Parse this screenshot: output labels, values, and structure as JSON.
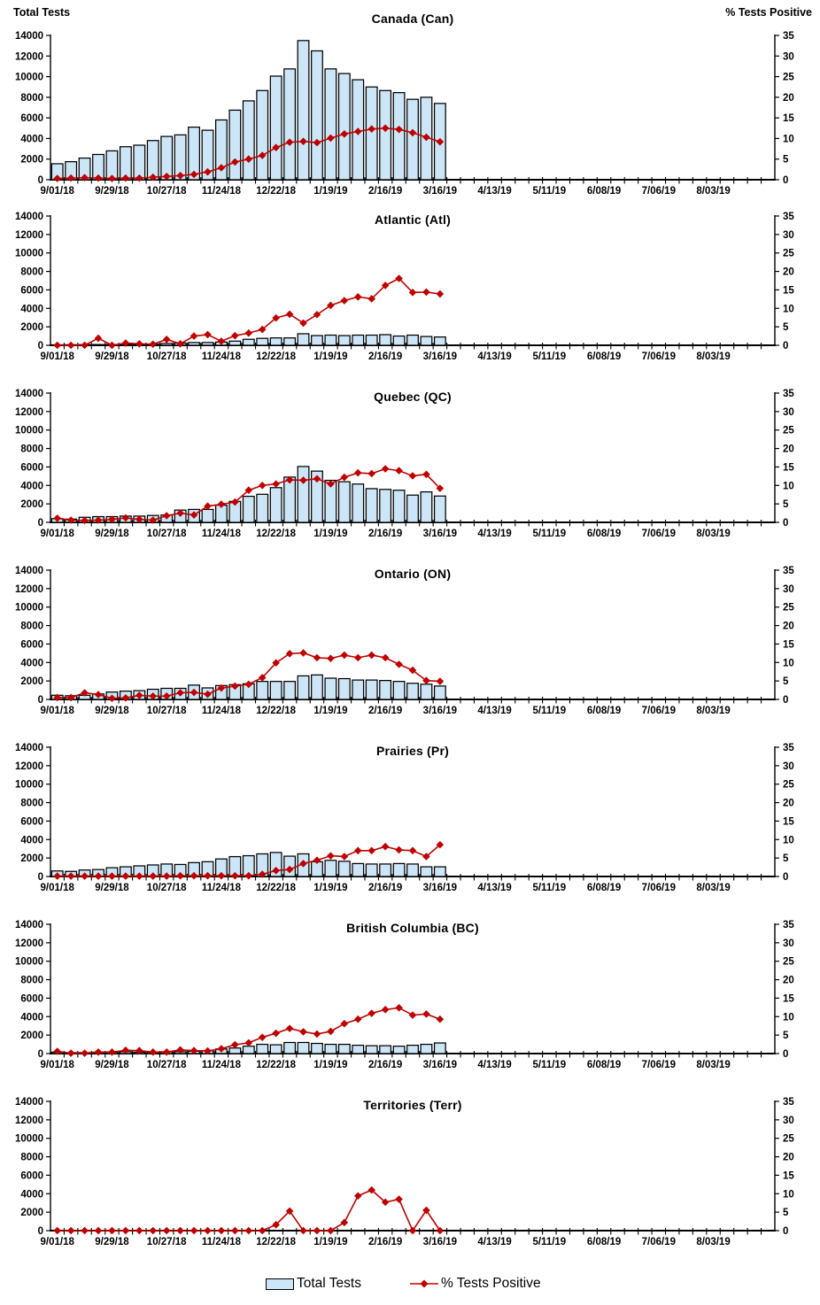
{
  "page": {
    "background": "#ffffff"
  },
  "colors": {
    "bar_fill": "#cce6f8",
    "bar_stroke": "#000000",
    "line_color": "#c00000",
    "marker_color": "#c00000",
    "axis_color": "#000000",
    "text_color": "#000000"
  },
  "legend": {
    "total_tests_label": "Total Tests",
    "pct_positive_label": "% Tests Positive"
  },
  "chart_data": {
    "type": "combo-bar-line-small-multiples",
    "description_visible": "Seven stacked weekly panels, light-blue bars = Total Tests (left axis), red diamond line = % Tests Positive (right axis)",
    "left_axis": {
      "title": "Total Tests",
      "min": 0,
      "max": 14000,
      "ticks": [
        0,
        2000,
        4000,
        6000,
        8000,
        10000,
        12000,
        14000
      ]
    },
    "right_axis": {
      "title": "% Tests Positive",
      "min": 0,
      "max": 35,
      "ticks": [
        0,
        5,
        10,
        15,
        20,
        25,
        30,
        35
      ]
    },
    "x_axis": {
      "n_slots": 53,
      "tick_every": "week",
      "label_slots": [
        0,
        4,
        8,
        12,
        16,
        20,
        24,
        28,
        32,
        36,
        40,
        44,
        48
      ],
      "labels": [
        "9/01/18",
        "9/29/18",
        "10/27/18",
        "11/24/18",
        "12/22/18",
        "1/19/19",
        "2/16/19",
        "3/16/19",
        "4/13/19",
        "5/11/19",
        "6/08/19",
        "7/06/19",
        "8/03/19"
      ]
    },
    "categories": [
      "9/01/18",
      "9/08/18",
      "9/15/18",
      "9/22/18",
      "9/29/18",
      "10/06/18",
      "10/13/18",
      "10/20/18",
      "10/27/18",
      "11/03/18",
      "11/10/18",
      "11/17/18",
      "11/24/18",
      "12/01/18",
      "12/08/18",
      "12/15/18",
      "12/22/18",
      "12/29/18",
      "1/05/19",
      "1/12/19",
      "1/19/19",
      "1/26/19",
      "2/02/19",
      "2/09/19",
      "2/16/19",
      "2/23/19",
      "3/02/19",
      "3/09/19",
      "3/16/19"
    ],
    "panels": [
      {
        "title": "Canada (Can)",
        "total_tests": [
          1550,
          1750,
          2100,
          2450,
          2800,
          3200,
          3350,
          3800,
          4200,
          4350,
          5100,
          4800,
          5800,
          6750,
          7650,
          8650,
          10050,
          10750,
          13500,
          12500,
          10750,
          10300,
          9700,
          9000,
          8650,
          8450,
          7800,
          8000,
          7400
        ],
        "pct_positive": [
          0.3,
          0.4,
          0.5,
          0.4,
          0.3,
          0.4,
          0.4,
          0.6,
          0.8,
          1.0,
          1.3,
          1.9,
          2.9,
          4.3,
          5.0,
          5.9,
          7.8,
          9.1,
          9.3,
          9.0,
          10.1,
          11.1,
          11.7,
          12.3,
          12.5,
          12.2,
          11.4,
          10.3,
          9.2
        ]
      },
      {
        "title": "Atlantic (Atl)",
        "total_tests": [
          50,
          60,
          70,
          80,
          90,
          100,
          110,
          130,
          200,
          250,
          300,
          300,
          350,
          450,
          650,
          750,
          800,
          800,
          1250,
          1050,
          1100,
          1050,
          1100,
          1100,
          1150,
          1000,
          1100,
          950,
          900
        ],
        "pct_positive": [
          0,
          0,
          0,
          1.9,
          0,
          0.6,
          0.4,
          0.3,
          1.6,
          0.4,
          2.5,
          2.9,
          1.1,
          2.6,
          3.3,
          4.3,
          7.4,
          8.4,
          6.0,
          8.3,
          10.8,
          12.1,
          13.1,
          12.6,
          16.2,
          18.1,
          14.3,
          14.4,
          13.9
        ]
      },
      {
        "title": "Quebec (QC)",
        "total_tests": [
          400,
          350,
          550,
          620,
          620,
          680,
          680,
          750,
          800,
          1330,
          1400,
          1400,
          1860,
          2270,
          2820,
          3040,
          3760,
          4900,
          6050,
          5550,
          4550,
          4400,
          4150,
          3650,
          3570,
          3480,
          2950,
          3300,
          2850
        ],
        "pct_positive": [
          1.1,
          0.6,
          0.5,
          0.6,
          0.8,
          1.2,
          0.8,
          0.6,
          1.8,
          2.5,
          2.0,
          4.4,
          4.9,
          5.5,
          8.7,
          10.0,
          10.4,
          11.5,
          11.4,
          11.8,
          10.4,
          12.2,
          13.4,
          13.2,
          14.5,
          14.0,
          12.6,
          13.0,
          9.2
        ]
      },
      {
        "title": "Ontario (ON)",
        "total_tests": [
          450,
          400,
          450,
          600,
          800,
          900,
          950,
          1100,
          1200,
          1200,
          1550,
          1250,
          1500,
          1600,
          1700,
          1950,
          1950,
          1950,
          2550,
          2650,
          2300,
          2250,
          2100,
          2100,
          2050,
          1950,
          1750,
          1650,
          1450
        ],
        "pct_positive": [
          0.5,
          0.5,
          1.8,
          1.3,
          0.3,
          0.4,
          1.1,
          0.9,
          0.9,
          1.8,
          1.9,
          1.4,
          3.1,
          3.6,
          4.1,
          5.9,
          9.9,
          12.4,
          12.6,
          11.3,
          11.1,
          12.0,
          11.3,
          12.0,
          11.3,
          9.5,
          7.9,
          5.1,
          4.9
        ]
      },
      {
        "title": "Prairies (Pr)",
        "total_tests": [
          600,
          550,
          700,
          750,
          950,
          1050,
          1150,
          1250,
          1350,
          1300,
          1500,
          1600,
          1900,
          2150,
          2250,
          2450,
          2600,
          2200,
          2450,
          1600,
          1750,
          1650,
          1400,
          1350,
          1350,
          1400,
          1350,
          1050,
          1050
        ],
        "pct_positive": [
          0.1,
          0.1,
          0.1,
          0.1,
          0.1,
          0.1,
          0.1,
          0.1,
          0.1,
          0.2,
          0.2,
          0.2,
          0.2,
          0.2,
          0.2,
          0.6,
          1.6,
          1.9,
          3.5,
          4.4,
          5.6,
          5.4,
          7.0,
          7.0,
          8.1,
          7.2,
          7.0,
          5.4,
          8.6
        ]
      },
      {
        "title": "British Columbia (BC)",
        "total_tests": [
          150,
          100,
          100,
          150,
          150,
          200,
          150,
          150,
          200,
          200,
          250,
          300,
          500,
          600,
          800,
          1000,
          950,
          1200,
          1200,
          1100,
          1000,
          1000,
          900,
          850,
          850,
          800,
          900,
          1000,
          1150
        ],
        "pct_positive": [
          0.6,
          0.1,
          0.1,
          0.4,
          0.4,
          0.9,
          0.8,
          0.4,
          0.4,
          1.0,
          0.8,
          0.7,
          1.3,
          2.4,
          2.9,
          4.4,
          5.5,
          6.8,
          5.9,
          5.3,
          6.0,
          8.1,
          9.3,
          10.9,
          11.9,
          12.4,
          10.4,
          10.7,
          9.3
        ]
      },
      {
        "title": "Territories (Terr)",
        "total_tests": [
          0,
          0,
          0,
          0,
          0,
          0,
          0,
          0,
          0,
          0,
          0,
          0,
          0,
          0,
          0,
          0,
          0,
          0,
          0,
          0,
          0,
          0,
          0,
          0,
          0,
          0,
          0,
          0,
          0
        ],
        "pct_positive": [
          0,
          0,
          0,
          0,
          0,
          0,
          0,
          0,
          0,
          0,
          0,
          0,
          0,
          0,
          0,
          0,
          1.6,
          5.3,
          0,
          0,
          0,
          2.2,
          9.4,
          11.0,
          7.7,
          8.5,
          0,
          5.5,
          0
        ]
      }
    ]
  }
}
